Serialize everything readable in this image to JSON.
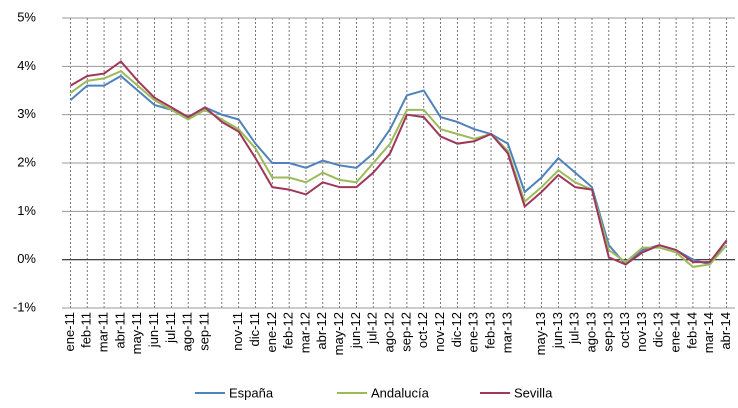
{
  "chart_data": {
    "type": "line",
    "categories": [
      "ene-11",
      "feb-11",
      "mar-11",
      "abr-11",
      "may-11",
      "jun-11",
      "jul-11",
      "ago-11",
      "sep-11",
      null,
      "nov-11",
      "dic-11",
      "ene-12",
      "feb-12",
      "mar-12",
      "abr-12",
      "may-12",
      "jun-12",
      "jul-12",
      "ago-12",
      "sep-12",
      "oct-12",
      "nov-12",
      "dic-12",
      "ene-13",
      "feb-13",
      "mar-13",
      null,
      "may-13",
      "jun-13",
      "jul-13",
      "ago-13",
      "sep-13",
      "oct-13",
      "nov-13",
      "dic-13",
      "ene-14",
      "feb-14",
      "mar-14",
      "abr-14"
    ],
    "series": [
      {
        "name": "España",
        "color": "#4f81bd",
        "values": [
          3.3,
          3.6,
          3.6,
          3.8,
          3.5,
          3.2,
          3.1,
          2.95,
          3.15,
          3.0,
          2.9,
          2.4,
          2.0,
          2.0,
          1.9,
          2.05,
          1.95,
          1.9,
          2.2,
          2.7,
          3.4,
          3.5,
          2.95,
          2.85,
          2.7,
          2.6,
          2.4,
          1.4,
          1.7,
          2.1,
          1.8,
          1.5,
          0.3,
          -0.1,
          0.2,
          0.3,
          0.2,
          0.0,
          -0.1,
          0.4
        ]
      },
      {
        "name": "Andalucía",
        "color": "#9bbb59",
        "values": [
          3.45,
          3.7,
          3.75,
          3.9,
          3.6,
          3.3,
          3.1,
          2.9,
          3.1,
          2.9,
          2.7,
          2.3,
          1.7,
          1.7,
          1.6,
          1.8,
          1.65,
          1.6,
          2.0,
          2.4,
          3.1,
          3.1,
          2.7,
          2.6,
          2.5,
          2.6,
          2.25,
          1.2,
          1.5,
          1.85,
          1.6,
          1.45,
          0.2,
          -0.05,
          0.25,
          0.25,
          0.15,
          -0.15,
          -0.1,
          0.3
        ]
      },
      {
        "name": "Sevilla",
        "color": "#a0375a",
        "values": [
          3.6,
          3.8,
          3.85,
          4.1,
          3.7,
          3.35,
          3.15,
          2.95,
          3.15,
          2.85,
          2.65,
          2.1,
          1.5,
          1.45,
          1.35,
          1.6,
          1.5,
          1.5,
          1.8,
          2.2,
          3.0,
          2.95,
          2.55,
          2.4,
          2.45,
          2.6,
          2.2,
          1.1,
          1.4,
          1.75,
          1.5,
          1.45,
          0.05,
          -0.1,
          0.15,
          0.3,
          0.2,
          -0.05,
          -0.05,
          0.4
        ]
      }
    ],
    "ylim": [
      -1,
      5
    ],
    "yticks": [
      {
        "value": -1,
        "label": "-1%"
      },
      {
        "value": 0,
        "label": "0%"
      },
      {
        "value": 1,
        "label": "1%"
      },
      {
        "value": 2,
        "label": "2%"
      },
      {
        "value": 3,
        "label": "3%"
      },
      {
        "value": 4,
        "label": "4%"
      },
      {
        "value": 5,
        "label": "5%"
      }
    ],
    "grid": true,
    "legend": "bottom"
  }
}
